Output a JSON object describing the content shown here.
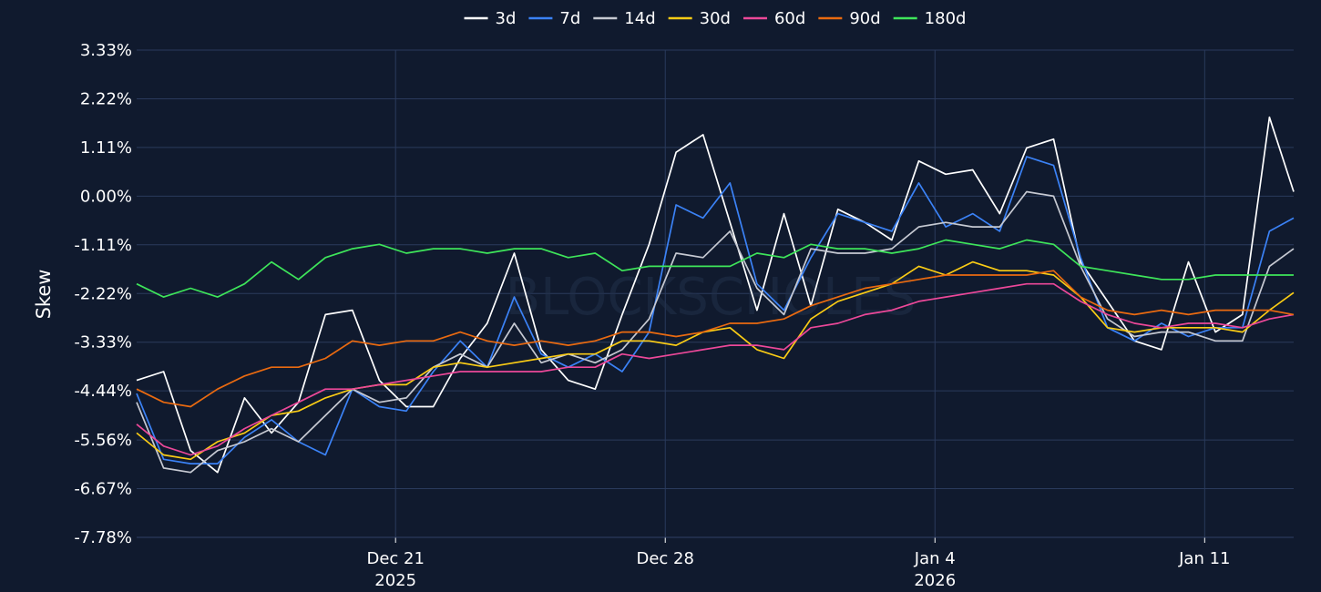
{
  "chart_data": {
    "type": "line",
    "ylabel": "Skew",
    "watermark": "BLOCKSCHOLES",
    "ylim": [
      -7.78,
      3.33
    ],
    "xlim": [
      -9.6,
      33.3
    ],
    "yticks": [
      {
        "value": 3.33,
        "label": "3.33%"
      },
      {
        "value": 2.22,
        "label": "2.22%"
      },
      {
        "value": 1.11,
        "label": "1.11%"
      },
      {
        "value": 0.0,
        "label": "0.00%"
      },
      {
        "value": -1.11,
        "label": "-1.11%"
      },
      {
        "value": -2.22,
        "label": "-2.22%"
      },
      {
        "value": -3.33,
        "label": "-3.33%"
      },
      {
        "value": -4.44,
        "label": "-4.44%"
      },
      {
        "value": -5.56,
        "label": "-5.56%"
      },
      {
        "value": -6.67,
        "label": "-6.67%"
      },
      {
        "value": -7.78,
        "label": "-7.78%"
      }
    ],
    "xticks": [
      {
        "value": 0,
        "label": "Dec 21",
        "sublabel": "2025"
      },
      {
        "value": 10,
        "label": "Dec 28",
        "sublabel": ""
      },
      {
        "value": 20,
        "label": "Jan 4",
        "sublabel": "2026"
      },
      {
        "value": 30,
        "label": "Jan 11",
        "sublabel": ""
      }
    ],
    "x": [
      -9.6,
      -8.6,
      -7.6,
      -6.6,
      -5.6,
      -4.6,
      -3.6,
      -2.6,
      -1.6,
      -0.6,
      0.4,
      1.4,
      2.4,
      3.4,
      4.4,
      5.4,
      6.4,
      7.4,
      8.4,
      9.4,
      10.4,
      11.4,
      12.4,
      13.4,
      14.4,
      15.4,
      16.4,
      17.4,
      18.4,
      19.4,
      20.4,
      21.4,
      22.4,
      23.4,
      24.4,
      25.4,
      26.4,
      27.4,
      28.4,
      29.4,
      30.4,
      31.4,
      32.4,
      33.3
    ],
    "series": [
      {
        "name": "3d",
        "color": "#ffffff",
        "values": [
          -4.2,
          -4.0,
          -5.8,
          -6.3,
          -4.6,
          -5.4,
          -4.7,
          -2.7,
          -2.6,
          -4.2,
          -4.8,
          -4.8,
          -3.7,
          -2.9,
          -1.3,
          -3.5,
          -4.2,
          -4.4,
          -2.7,
          -1.1,
          1.0,
          1.4,
          -0.6,
          -2.6,
          -0.4,
          -2.5,
          -0.3,
          -0.6,
          -1.0,
          0.8,
          0.5,
          0.6,
          -0.4,
          1.1,
          1.3,
          -1.5,
          -2.4,
          -3.3,
          -3.5,
          -1.5,
          -3.1,
          -2.7,
          1.8,
          0.1
        ]
      },
      {
        "name": "7d",
        "color": "#3b82f6",
        "values": [
          -4.5,
          -6.0,
          -6.1,
          -6.1,
          -5.5,
          -5.1,
          -5.6,
          -5.9,
          -4.4,
          -4.8,
          -4.9,
          -4.0,
          -3.3,
          -3.9,
          -2.3,
          -3.6,
          -3.9,
          -3.6,
          -4.0,
          -3.1,
          -0.2,
          -0.5,
          0.3,
          -2.0,
          -2.6,
          -1.4,
          -0.4,
          -0.6,
          -0.8,
          0.3,
          -0.7,
          -0.4,
          -0.8,
          0.9,
          0.7,
          -1.4,
          -3.0,
          -3.3,
          -2.9,
          -3.2,
          -3.0,
          -3.0,
          -0.8,
          -0.5
        ]
      },
      {
        "name": "14d",
        "color": "#c6c9d2",
        "values": [
          -4.7,
          -6.2,
          -6.3,
          -5.8,
          -5.6,
          -5.3,
          -5.6,
          -5.0,
          -4.4,
          -4.7,
          -4.6,
          -3.9,
          -3.6,
          -3.9,
          -2.9,
          -3.8,
          -3.6,
          -3.8,
          -3.5,
          -2.8,
          -1.3,
          -1.4,
          -0.8,
          -2.1,
          -2.7,
          -1.2,
          -1.3,
          -1.3,
          -1.2,
          -0.7,
          -0.6,
          -0.7,
          -0.7,
          0.1,
          0.0,
          -1.6,
          -2.8,
          -3.2,
          -3.1,
          -3.1,
          -3.3,
          -3.3,
          -1.6,
          -1.2
        ]
      },
      {
        "name": "30d",
        "color": "#facc15",
        "values": [
          -5.4,
          -5.9,
          -6.0,
          -5.6,
          -5.4,
          -5.0,
          -4.9,
          -4.6,
          -4.4,
          -4.3,
          -4.3,
          -3.9,
          -3.8,
          -3.9,
          -3.8,
          -3.7,
          -3.6,
          -3.6,
          -3.3,
          -3.3,
          -3.4,
          -3.1,
          -3.0,
          -3.5,
          -3.7,
          -2.8,
          -2.4,
          -2.2,
          -2.0,
          -1.6,
          -1.8,
          -1.5,
          -1.7,
          -1.7,
          -1.8,
          -2.3,
          -3.0,
          -3.1,
          -3.0,
          -3.0,
          -3.0,
          -3.1,
          -2.6,
          -2.2
        ]
      },
      {
        "name": "60d",
        "color": "#ec4899",
        "values": [
          -5.2,
          -5.7,
          -5.9,
          -5.7,
          -5.3,
          -5.0,
          -4.7,
          -4.4,
          -4.4,
          -4.3,
          -4.2,
          -4.1,
          -4.0,
          -4.0,
          -4.0,
          -4.0,
          -3.9,
          -3.9,
          -3.6,
          -3.7,
          -3.6,
          -3.5,
          -3.4,
          -3.4,
          -3.5,
          -3.0,
          -2.9,
          -2.7,
          -2.6,
          -2.4,
          -2.3,
          -2.2,
          -2.1,
          -2.0,
          -2.0,
          -2.4,
          -2.7,
          -2.9,
          -3.0,
          -2.9,
          -2.9,
          -3.0,
          -2.8,
          -2.7
        ]
      },
      {
        "name": "90d",
        "color": "#ea6a10",
        "values": [
          -4.4,
          -4.7,
          -4.8,
          -4.4,
          -4.1,
          -3.9,
          -3.9,
          -3.7,
          -3.3,
          -3.4,
          -3.3,
          -3.3,
          -3.1,
          -3.3,
          -3.4,
          -3.3,
          -3.4,
          -3.3,
          -3.1,
          -3.1,
          -3.2,
          -3.1,
          -2.9,
          -2.9,
          -2.8,
          -2.5,
          -2.3,
          -2.1,
          -2.0,
          -1.9,
          -1.8,
          -1.8,
          -1.8,
          -1.8,
          -1.7,
          -2.3,
          -2.6,
          -2.7,
          -2.6,
          -2.7,
          -2.6,
          -2.6,
          -2.6,
          -2.7
        ]
      },
      {
        "name": "180d",
        "color": "#3ee55a",
        "values": [
          -2.0,
          -2.3,
          -2.1,
          -2.3,
          -2.0,
          -1.5,
          -1.9,
          -1.4,
          -1.2,
          -1.1,
          -1.3,
          -1.2,
          -1.2,
          -1.3,
          -1.2,
          -1.2,
          -1.4,
          -1.3,
          -1.7,
          -1.6,
          -1.6,
          -1.6,
          -1.6,
          -1.3,
          -1.4,
          -1.1,
          -1.2,
          -1.2,
          -1.3,
          -1.2,
          -1.0,
          -1.1,
          -1.2,
          -1.0,
          -1.1,
          -1.6,
          -1.7,
          -1.8,
          -1.9,
          -1.9,
          -1.8,
          -1.8,
          -1.8,
          -1.8
        ]
      }
    ]
  }
}
